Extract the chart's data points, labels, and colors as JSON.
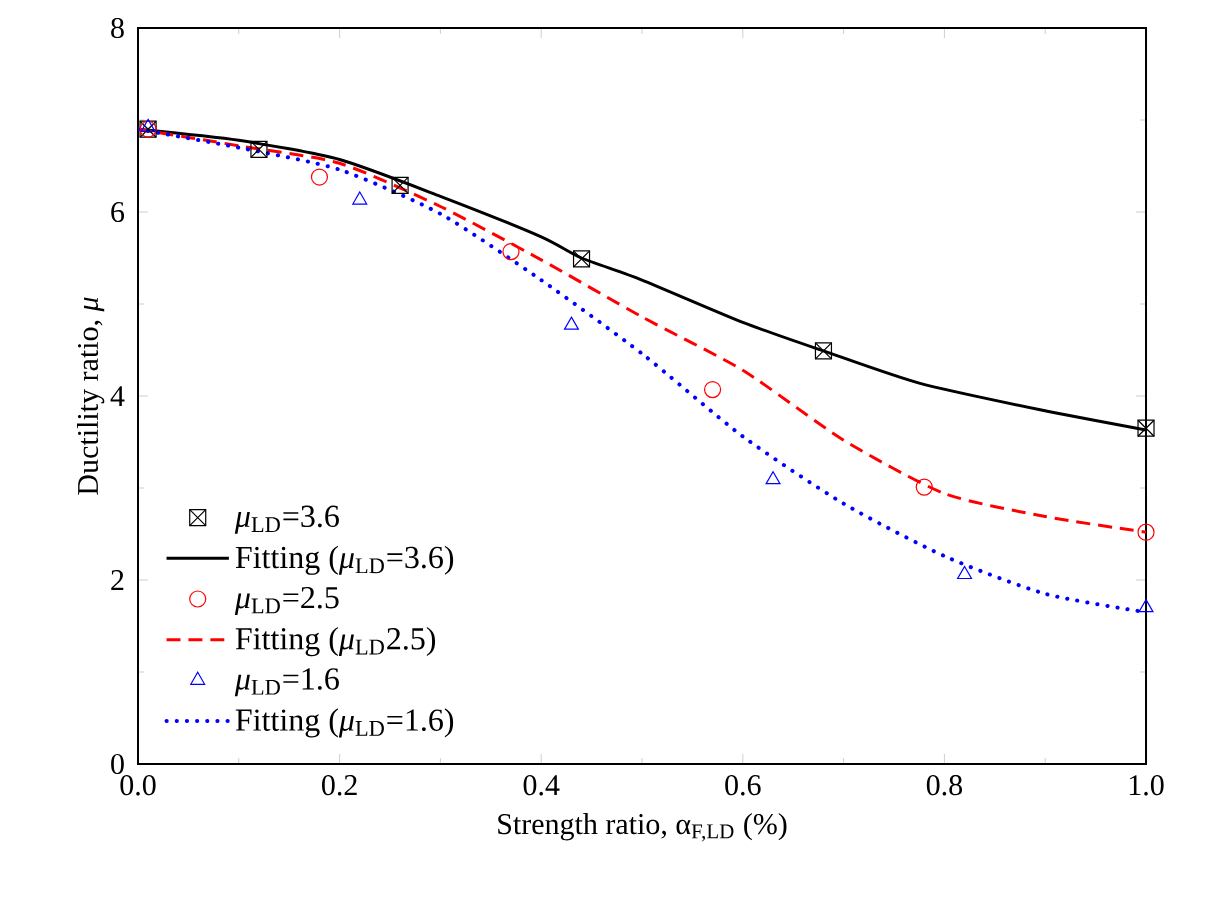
{
  "chart_data": {
    "type": "scatter",
    "xlabel": "Strength ratio, α$_{F,LD}$ (%)",
    "ylabel": "Ductility ratio, *μ*",
    "xlim": [
      0,
      1
    ],
    "ylim": [
      0,
      8
    ],
    "xticks": [
      {
        "value": 0,
        "label": "0.0"
      },
      {
        "value": 0.2,
        "label": "0.2"
      },
      {
        "value": 0.4,
        "label": "0.4"
      },
      {
        "value": 0.6,
        "label": "0.6"
      },
      {
        "value": 0.8,
        "label": "0.8"
      },
      {
        "value": 1,
        "label": "1.0"
      }
    ],
    "yticks": [
      0,
      2,
      4,
      6,
      8
    ],
    "legend": "left",
    "grid": false,
    "series": [
      {
        "name": "*μ*$_{LD}$=3.6",
        "marker": "square",
        "color": "#000000",
        "x": [
          0.01,
          0.12,
          0.26,
          0.44,
          0.68,
          1.0
        ],
        "values": [
          6.9,
          6.68,
          6.29,
          5.49,
          4.49,
          3.65
        ]
      },
      {
        "name": "Fitting (*μ*$_{LD}$=3.6)",
        "type": "line",
        "marker": "none",
        "line_style": "solid",
        "color": "#000000",
        "x": [
          0,
          0.1,
          0.2,
          0.3,
          0.4,
          0.44,
          0.5,
          0.6,
          0.68,
          0.775,
          0.895,
          1.0
        ],
        "values": [
          6.9,
          6.78,
          6.57,
          6.17,
          5.73,
          5.5,
          5.26,
          4.8,
          4.49,
          4.14,
          3.85,
          3.63
        ]
      },
      {
        "name": "*μ*$_{LD}$=2.5",
        "marker": "circle",
        "color": "#ff0000",
        "x": [
          0.01,
          0.18,
          0.37,
          0.57,
          0.78,
          1.0
        ],
        "values": [
          6.9,
          6.38,
          5.57,
          4.07,
          3.01,
          2.52
        ]
      },
      {
        "name": "Fitting (*μ*$_{LD}$2.5)",
        "type": "line",
        "marker": "none",
        "line_style": "dashed",
        "color": "#ff0000",
        "x": [
          0,
          0.1,
          0.2,
          0.3,
          0.4,
          0.5,
          0.6,
          0.7,
          0.8,
          0.9,
          1.0
        ],
        "values": [
          6.9,
          6.72,
          6.53,
          6.06,
          5.48,
          4.86,
          4.28,
          3.52,
          2.94,
          2.69,
          2.52
        ]
      },
      {
        "name": "*μ*$_{LD}$=1.6",
        "marker": "triangle",
        "color": "#0000ff",
        "x": [
          0.01,
          0.22,
          0.43,
          0.63,
          0.82,
          1.0
        ],
        "values": [
          6.92,
          6.13,
          4.77,
          3.09,
          2.06,
          1.7
        ]
      },
      {
        "name": "Fitting (*μ*$_{LD}$=1.6)",
        "type": "line",
        "marker": "none",
        "line_style": "dotted",
        "color": "#0000ff",
        "x": [
          0,
          0.1,
          0.2,
          0.3,
          0.4,
          0.5,
          0.6,
          0.7,
          0.8,
          0.9,
          1.0
        ],
        "values": [
          6.9,
          6.7,
          6.46,
          5.98,
          5.26,
          4.46,
          3.56,
          2.83,
          2.26,
          1.85,
          1.65
        ]
      }
    ]
  }
}
